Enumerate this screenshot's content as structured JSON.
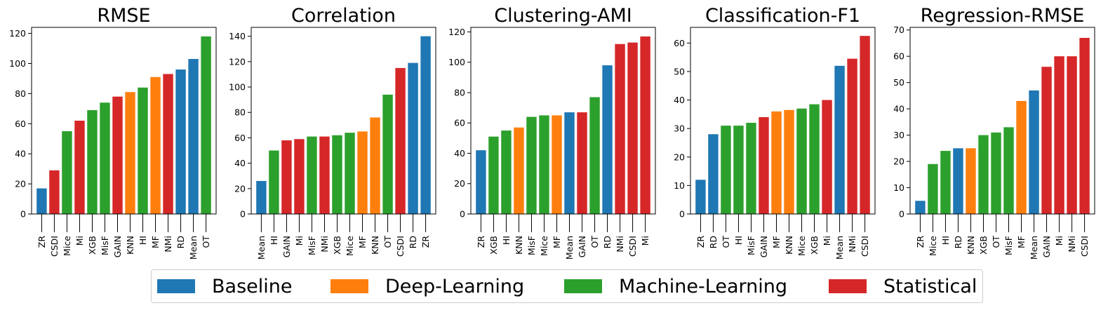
{
  "groups": [
    {
      "key": "Baseline",
      "label": "Baseline",
      "color": "#1f77b4"
    },
    {
      "key": "Deep-Learning",
      "label": "Deep-Learning",
      "color": "#ff7f0e"
    },
    {
      "key": "Machine-Learning",
      "label": "Machine-Learning",
      "color": "#2ca02c"
    },
    {
      "key": "Statistical",
      "label": "Statistical",
      "color": "#d62728"
    }
  ],
  "chart_data": [
    {
      "type": "bar",
      "title": "RMSE",
      "ylim": [
        0,
        124
      ],
      "yticks": [
        0,
        20,
        40,
        60,
        80,
        100,
        120
      ],
      "categories": [
        "ZR",
        "CSDI",
        "Mice",
        "Mi",
        "XGB",
        "MisF",
        "GAIN",
        "KNN",
        "HI",
        "MF",
        "NMi",
        "RD",
        "Mean",
        "OT"
      ],
      "values": [
        17,
        29,
        55,
        62,
        69,
        74,
        78,
        81,
        84,
        91,
        93,
        96,
        103,
        118
      ],
      "groups": [
        "Baseline",
        "Statistical",
        "Machine-Learning",
        "Statistical",
        "Machine-Learning",
        "Machine-Learning",
        "Statistical",
        "Deep-Learning",
        "Machine-Learning",
        "Deep-Learning",
        "Statistical",
        "Baseline",
        "Baseline",
        "Machine-Learning"
      ]
    },
    {
      "type": "bar",
      "title": "Correlation",
      "ylim": [
        0,
        147
      ],
      "yticks": [
        0,
        20,
        40,
        60,
        80,
        100,
        120,
        140
      ],
      "categories": [
        "Mean",
        "HI",
        "GAIN",
        "Mi",
        "MisF",
        "NMi",
        "XGB",
        "Mice",
        "MF",
        "KNN",
        "OT",
        "CSDI",
        "RD",
        "ZR"
      ],
      "values": [
        26,
        50,
        58,
        59,
        61,
        61,
        62,
        64,
        65,
        76,
        94,
        115,
        119,
        140
      ],
      "groups": [
        "Baseline",
        "Machine-Learning",
        "Statistical",
        "Statistical",
        "Machine-Learning",
        "Statistical",
        "Machine-Learning",
        "Machine-Learning",
        "Deep-Learning",
        "Deep-Learning",
        "Machine-Learning",
        "Statistical",
        "Baseline",
        "Baseline"
      ]
    },
    {
      "type": "bar",
      "title": "Clustering-AMI",
      "ylim": [
        0,
        123
      ],
      "yticks": [
        0,
        20,
        40,
        60,
        80,
        100,
        120
      ],
      "categories": [
        "ZR",
        "XGB",
        "HI",
        "KNN",
        "MisF",
        "Mice",
        "MF",
        "Mean",
        "GAIN",
        "OT",
        "RD",
        "NMi",
        "CSDI",
        "Mi"
      ],
      "values": [
        42,
        51,
        55,
        57,
        64,
        65,
        65,
        67,
        67,
        77,
        98,
        112,
        113,
        117
      ],
      "groups": [
        "Baseline",
        "Machine-Learning",
        "Machine-Learning",
        "Deep-Learning",
        "Machine-Learning",
        "Machine-Learning",
        "Deep-Learning",
        "Baseline",
        "Statistical",
        "Machine-Learning",
        "Baseline",
        "Statistical",
        "Statistical",
        "Statistical"
      ]
    },
    {
      "type": "bar",
      "title": "Classification-F1",
      "ylim": [
        0,
        65.5
      ],
      "yticks": [
        0,
        10,
        20,
        30,
        40,
        50,
        60
      ],
      "categories": [
        "ZR",
        "RD",
        "OT",
        "HI",
        "MisF",
        "GAIN",
        "MF",
        "KNN",
        "Mice",
        "XGB",
        "Mi",
        "Mean",
        "NMi",
        "CSDI"
      ],
      "values": [
        12,
        28,
        31,
        31,
        32,
        34,
        36,
        36.5,
        37,
        38.5,
        40,
        52,
        54.5,
        62.5
      ],
      "groups": [
        "Baseline",
        "Baseline",
        "Machine-Learning",
        "Machine-Learning",
        "Machine-Learning",
        "Statistical",
        "Deep-Learning",
        "Deep-Learning",
        "Machine-Learning",
        "Machine-Learning",
        "Statistical",
        "Baseline",
        "Statistical",
        "Statistical"
      ]
    },
    {
      "type": "bar",
      "title": "Regression-RMSE",
      "ylim": [
        0,
        71
      ],
      "yticks": [
        0,
        10,
        20,
        30,
        40,
        50,
        60,
        70
      ],
      "categories": [
        "ZR",
        "Mice",
        "HI",
        "RD",
        "KNN",
        "XGB",
        "OT",
        "MisF",
        "MF",
        "Mean",
        "GAIN",
        "Mi",
        "NMi",
        "CSDI"
      ],
      "values": [
        5,
        19,
        24,
        25,
        25,
        30,
        31,
        33,
        43,
        47,
        56,
        60,
        60,
        67
      ],
      "groups": [
        "Baseline",
        "Machine-Learning",
        "Machine-Learning",
        "Baseline",
        "Deep-Learning",
        "Machine-Learning",
        "Machine-Learning",
        "Machine-Learning",
        "Deep-Learning",
        "Baseline",
        "Statistical",
        "Statistical",
        "Statistical",
        "Statistical"
      ]
    }
  ]
}
